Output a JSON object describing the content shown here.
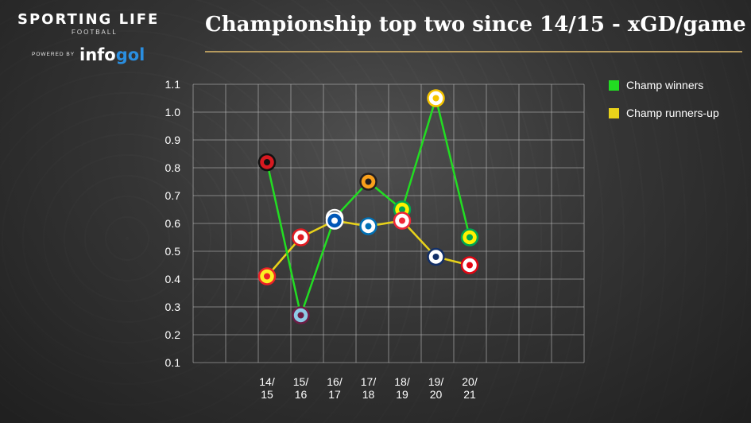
{
  "brand": {
    "name": "SPORTING LIFE",
    "sub": "FOOTBALL",
    "powered_by": "POWERED BY",
    "partner_a": "info",
    "partner_b": "gol"
  },
  "colors": {
    "winners": "#22dd22",
    "runners_up": "#e8d21a",
    "grid": "#bdbdbd",
    "rule": "#b59a5e"
  },
  "chart_data": {
    "type": "line",
    "title": "Championship top two since 14/15 - xGD/game",
    "xlabel": "",
    "ylabel": "",
    "ylim": [
      0.1,
      1.1
    ],
    "yticks": [
      "0.1",
      "0.2",
      "0.3",
      "0.4",
      "0.5",
      "0.6",
      "0.7",
      "0.8",
      "0.9",
      "1.0",
      "1.1"
    ],
    "grid": true,
    "legend_position": "top-right",
    "categories": [
      [
        "14/",
        "15"
      ],
      [
        "15/",
        "16"
      ],
      [
        "16/",
        "17"
      ],
      [
        "17/",
        "18"
      ],
      [
        "18/",
        "19"
      ],
      [
        "19/",
        "20"
      ],
      [
        "20/",
        "21"
      ]
    ],
    "series": [
      {
        "name": "Champ winners",
        "color": "#22dd22",
        "values": [
          0.82,
          0.27,
          0.62,
          0.75,
          0.65,
          1.05,
          0.55
        ],
        "badge_icons": [
          "bournemouth-badge-icon",
          "burnley-badge-icon",
          "newcastle-badge-icon",
          "wolves-badge-icon",
          "norwich-badge-icon",
          "leeds-badge-icon",
          "norwich-badge-icon"
        ]
      },
      {
        "name": "Champ runners-up",
        "color": "#e8d21a",
        "values": [
          0.41,
          0.55,
          0.61,
          0.59,
          0.61,
          0.48,
          0.45
        ],
        "badge_icons": [
          "watford-badge-icon",
          "middlesbrough-badge-icon",
          "brighton-badge-icon",
          "cardiff-badge-icon",
          "sheffield-united-badge-icon",
          "west-brom-badge-icon",
          "brentford-badge-icon"
        ]
      }
    ]
  }
}
